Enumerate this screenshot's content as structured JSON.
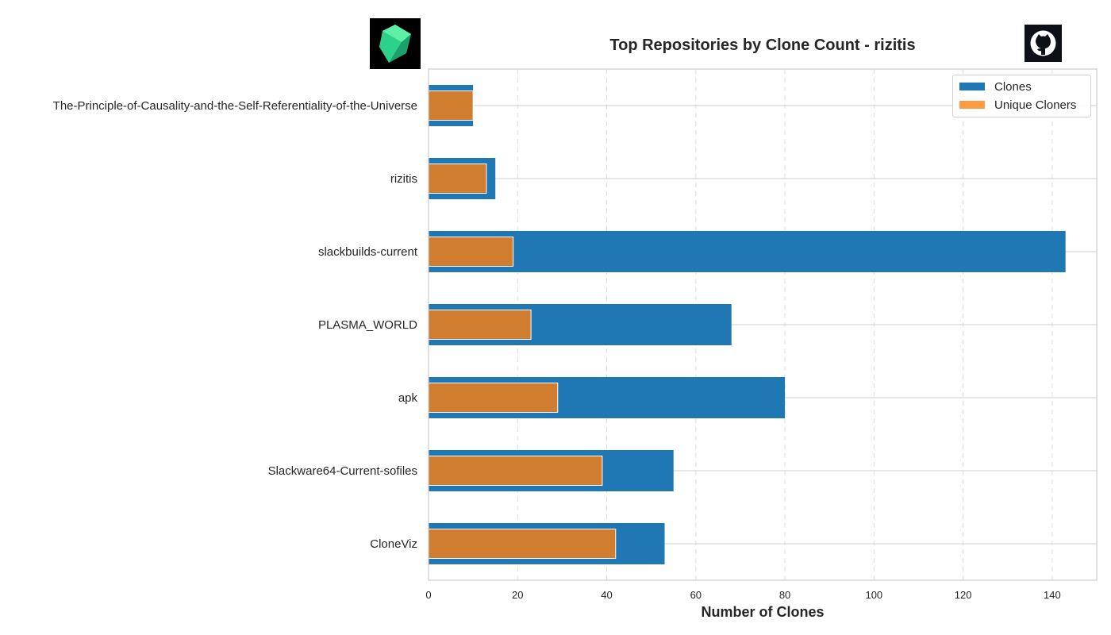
{
  "chart_data": {
    "type": "bar",
    "orientation": "horizontal",
    "title": "Top Repositories by Clone Count - rizitis",
    "xlabel": "Number of Clones",
    "ylabel": "",
    "categories": [
      "The-Principle-of-Causality-and-the-Self-Referentiality-of-the-Universe",
      "rizitis",
      "slackbuilds-current",
      "PLASMA_WORLD",
      "apk",
      "Slackware64-Current-sofiles",
      "CloneViz"
    ],
    "series": [
      {
        "name": "Clones",
        "values": [
          10,
          15,
          143,
          68,
          80,
          55,
          53
        ],
        "color": "#1f77b4"
      },
      {
        "name": "Unique Cloners",
        "values": [
          10,
          13,
          19,
          23,
          29,
          39,
          42
        ],
        "color": "#d07d2f"
      }
    ],
    "xlim": [
      0,
      150
    ],
    "xticks": [
      0,
      20,
      40,
      60,
      80,
      100,
      120,
      140
    ],
    "grid": true,
    "legend_placement": "top-right",
    "legend_swatch_colors": [
      "#1f77b4",
      "#ff9b40"
    ]
  }
}
